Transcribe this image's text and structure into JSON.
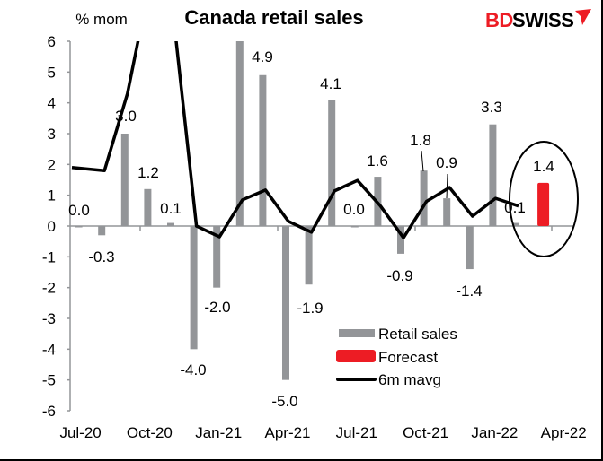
{
  "chart_data": {
    "type": "bar",
    "title": "Canada retail sales",
    "ylabel": "% mom",
    "ylim": [
      -6,
      6
    ],
    "yticks": [
      6,
      5,
      4,
      3,
      2,
      1,
      0,
      -1,
      -2,
      -3,
      -4,
      -5,
      -6
    ],
    "categories": [
      "Jul-20",
      "Aug-20",
      "Sep-20",
      "Oct-20",
      "Nov-20",
      "Dec-20",
      "Jan-21",
      "Feb-21",
      "Mar-21",
      "Apr-21",
      "May-21",
      "Jun-21",
      "Jul-21",
      "Aug-21",
      "Sep-21",
      "Oct-21",
      "Nov-21",
      "Dec-21",
      "Jan-22",
      "Feb-22",
      "Mar-22"
    ],
    "xtick_labels": [
      "Jul-20",
      "Oct-20",
      "Jan-21",
      "Apr-21",
      "Jul-21",
      "Oct-21",
      "Jan-22",
      "Apr-22"
    ],
    "series": [
      {
        "name": "Retail sales",
        "type": "bar",
        "color": "#939598",
        "values": [
          0.0,
          -0.3,
          3.0,
          1.2,
          0.1,
          -4.0,
          -2.0,
          6.0,
          4.9,
          -5.0,
          -1.9,
          4.1,
          0.0,
          1.6,
          -0.9,
          1.8,
          0.9,
          -1.4,
          3.3,
          0.1,
          null
        ]
      },
      {
        "name": "Forecast",
        "type": "bar",
        "color": "#ed1c24",
        "values": [
          null,
          null,
          null,
          null,
          null,
          null,
          null,
          null,
          null,
          null,
          null,
          null,
          null,
          null,
          null,
          null,
          null,
          null,
          null,
          null,
          1.4
        ]
      },
      {
        "name": "6m mavg",
        "type": "line",
        "color": "#000000",
        "values": [
          1.9,
          1.8,
          4.3,
          8.0,
          6.8,
          0.0,
          -0.35,
          0.85,
          1.17,
          0.15,
          -0.2,
          1.14,
          1.48,
          0.65,
          -0.38,
          0.8,
          1.25,
          0.32,
          0.9,
          0.65,
          null
        ]
      }
    ],
    "data_labels": [
      "0.0",
      "-0.3",
      "3.0",
      "1.2",
      "0.1",
      "-4.0",
      "-2.0",
      "",
      "4.9",
      "-5.0",
      "-1.9",
      "4.1",
      "0.0",
      "1.6",
      "-0.9",
      "1.8",
      "0.9",
      "-1.4",
      "3.3",
      "0.1",
      "1.4"
    ],
    "legend": {
      "placement": "bottom-right",
      "entries": [
        "Retail sales",
        "Forecast",
        "6m mavg"
      ]
    },
    "annotation": "forecast circled",
    "grid": false
  },
  "logo": {
    "text_red": "BD",
    "text_black": "SWISS",
    "color_red": "#ed1c24"
  }
}
